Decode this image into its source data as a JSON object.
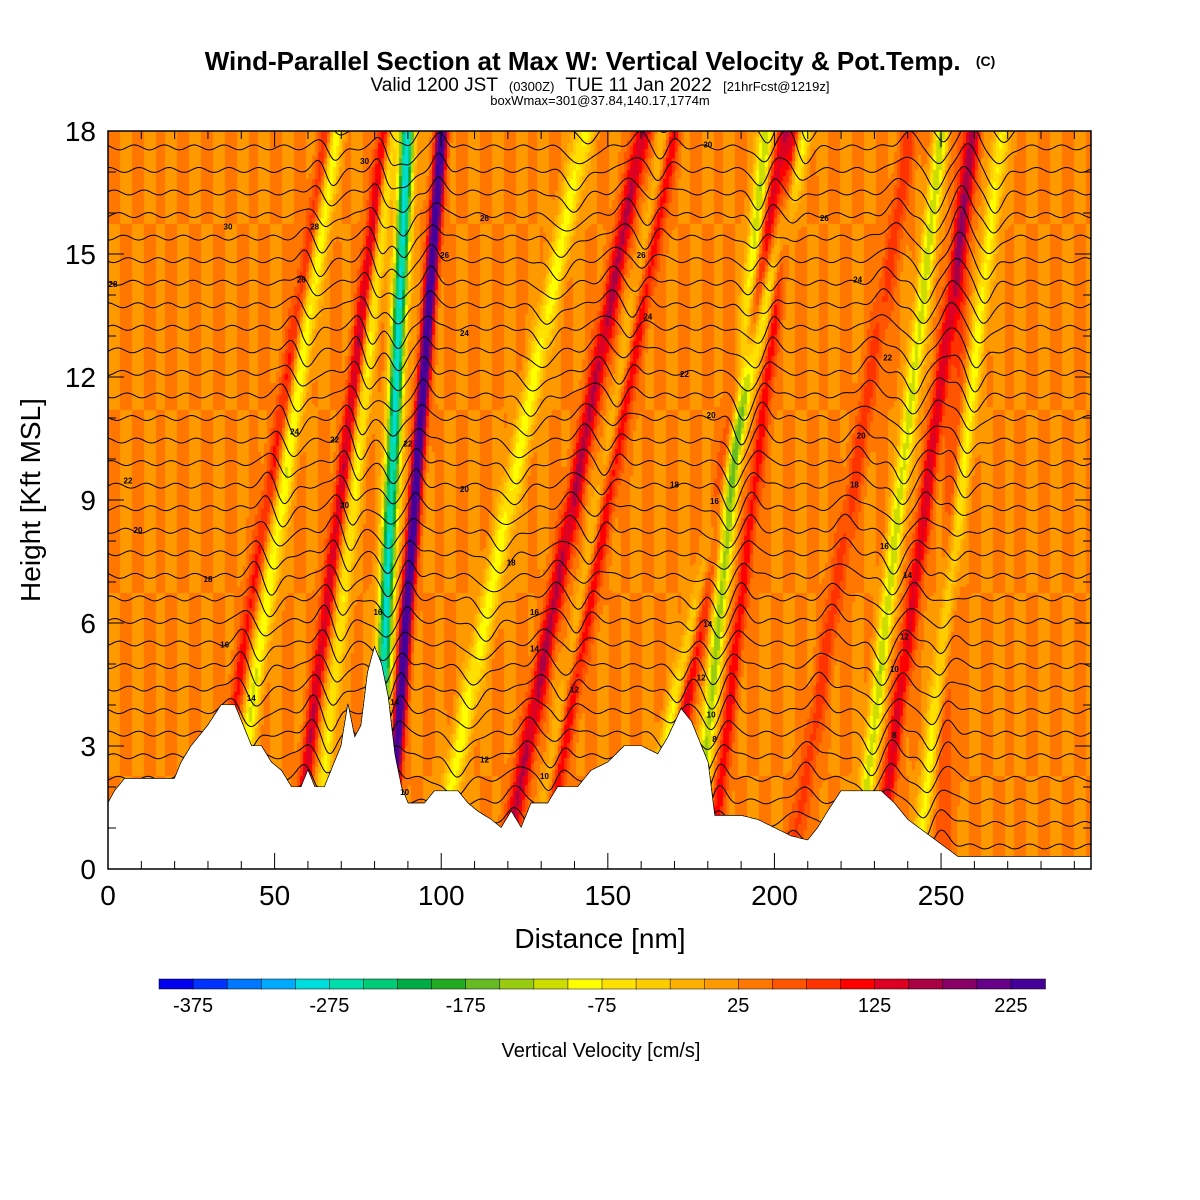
{
  "header": {
    "title": "Wind-Parallel Section at Max W: Vertical Velocity & Pot.Temp.",
    "title_mark": "(C)",
    "valid_prefix": "Valid 1200 JST",
    "valid_utc": "(0300Z)",
    "valid_date": "TUE 11 Jan 2022",
    "valid_fcst": "[21hrFcst@1219z]",
    "box_info": "boxWmax=301@37.84,140.17,1774m"
  },
  "chart_data": {
    "type": "heatmap",
    "title": "Wind-Parallel Section at Max W: Vertical Velocity & Pot.Temp.",
    "xlabel": "Distance [nm]",
    "ylabel": "Height [Kft MSL]",
    "xlim": [
      0,
      295
    ],
    "ylim": [
      0,
      18
    ],
    "x_ticks": [
      0,
      50,
      100,
      150,
      200,
      250
    ],
    "y_ticks": [
      0,
      3,
      6,
      9,
      12,
      15,
      18
    ],
    "grid": false,
    "colorbar": {
      "label": "Vertical Velocity [cm/s]",
      "min": -400,
      "max": 250,
      "step": 25,
      "tick_labels": [
        "-375",
        "-275",
        "-175",
        "-75",
        "25",
        "125",
        "225"
      ],
      "colors": [
        "#0000ee",
        "#0033ff",
        "#0077ff",
        "#00aaff",
        "#00dddd",
        "#00ddaa",
        "#00cc77",
        "#00aa44",
        "#22aa22",
        "#66bb22",
        "#99cc11",
        "#ccdd00",
        "#ffff00",
        "#ffe000",
        "#ffcc00",
        "#ffb000",
        "#ff9900",
        "#ff7700",
        "#ff5500",
        "#ff3300",
        "#ff0000",
        "#dd0022",
        "#aa0044",
        "#880066",
        "#660088",
        "#440099"
      ]
    },
    "terrain_kft": [
      [
        0,
        1.6
      ],
      [
        2,
        1.9
      ],
      [
        5,
        2.2
      ],
      [
        20,
        2.2
      ],
      [
        22,
        2.6
      ],
      [
        25,
        3.0
      ],
      [
        30,
        3.5
      ],
      [
        34,
        4.0
      ],
      [
        38,
        4.0
      ],
      [
        40,
        3.6
      ],
      [
        43,
        3.0
      ],
      [
        46,
        3.0
      ],
      [
        49,
        2.6
      ],
      [
        52,
        2.4
      ],
      [
        55,
        2.0
      ],
      [
        58,
        2.0
      ],
      [
        60,
        2.4
      ],
      [
        62,
        2.0
      ],
      [
        65,
        2.0
      ],
      [
        68,
        2.6
      ],
      [
        70,
        3.0
      ],
      [
        72,
        4.0
      ],
      [
        74,
        3.2
      ],
      [
        76,
        3.5
      ],
      [
        78,
        4.8
      ],
      [
        80,
        5.4
      ],
      [
        82,
        5.0
      ],
      [
        84,
        4.2
      ],
      [
        86,
        2.8
      ],
      [
        88,
        2.0
      ],
      [
        90,
        1.6
      ],
      [
        95,
        1.6
      ],
      [
        98,
        1.9
      ],
      [
        105,
        1.9
      ],
      [
        108,
        1.6
      ],
      [
        111,
        1.4
      ],
      [
        115,
        1.2
      ],
      [
        118,
        1.0
      ],
      [
        121,
        1.4
      ],
      [
        124,
        1.0
      ],
      [
        127,
        1.6
      ],
      [
        132,
        1.6
      ],
      [
        135,
        2.0
      ],
      [
        141,
        2.0
      ],
      [
        145,
        2.4
      ],
      [
        150,
        2.6
      ],
      [
        155,
        3.0
      ],
      [
        160,
        3.0
      ],
      [
        165,
        2.8
      ],
      [
        168,
        3.2
      ],
      [
        172,
        3.9
      ],
      [
        175,
        3.6
      ],
      [
        178,
        3.0
      ],
      [
        180,
        2.6
      ],
      [
        182,
        1.3
      ],
      [
        190,
        1.3
      ],
      [
        195,
        1.2
      ],
      [
        200,
        1.0
      ],
      [
        205,
        0.8
      ],
      [
        210,
        0.7
      ],
      [
        213,
        1.0
      ],
      [
        216,
        1.4
      ],
      [
        220,
        1.9
      ],
      [
        232,
        1.9
      ],
      [
        236,
        1.6
      ],
      [
        240,
        1.2
      ],
      [
        245,
        0.9
      ],
      [
        250,
        0.6
      ],
      [
        255,
        0.3
      ],
      [
        295,
        0.3
      ]
    ],
    "updrafts": [
      {
        "x0": 30,
        "slope": 2.0,
        "amp": 80,
        "w": 2.2
      },
      {
        "x0": 56,
        "slope": 1.5,
        "amp": 120,
        "w": 2.0
      },
      {
        "x0": 84,
        "slope": 0.9,
        "amp": 250,
        "w": 1.8
      },
      {
        "x0": 119,
        "slope": 2.3,
        "amp": 130,
        "w": 2.6
      },
      {
        "x0": 130,
        "slope": 2.2,
        "amp": 110,
        "w": 2.4
      },
      {
        "x0": 165,
        "slope": 2.1,
        "amp": 120,
        "w": 2.4
      },
      {
        "x0": 181,
        "slope": 1.4,
        "amp": 90,
        "w": 2.0
      },
      {
        "x0": 205,
        "slope": 2.0,
        "amp": 60,
        "w": 2.6
      },
      {
        "x0": 231,
        "slope": 1.6,
        "amp": 110,
        "w": 2.2
      },
      {
        "x0": 250,
        "slope": 0.4,
        "amp": 50,
        "w": 2.6
      }
    ],
    "downdrafts": [
      {
        "x0": 36,
        "slope": 1.8,
        "amp": -120,
        "w": 2.4
      },
      {
        "x0": 62,
        "slope": 1.3,
        "amp": -100,
        "w": 2.0
      },
      {
        "x0": 80,
        "slope": 0.55,
        "amp": -310,
        "w": 2.2
      },
      {
        "x0": 98,
        "slope": 2.5,
        "amp": -110,
        "w": 2.8
      },
      {
        "x0": 128,
        "slope": 2.2,
        "amp": -70,
        "w": 2.2
      },
      {
        "x0": 159,
        "slope": 2.8,
        "amp": -110,
        "w": 2.4
      },
      {
        "x0": 176,
        "slope": 1.2,
        "amp": -160,
        "w": 2.2
      },
      {
        "x0": 225,
        "slope": 1.4,
        "amp": -140,
        "w": 2.2
      },
      {
        "x0": 243,
        "slope": 1.4,
        "amp": -110,
        "w": 2.2
      }
    ],
    "theta_levels": {
      "start": 4,
      "end": 44,
      "step": 1
    },
    "contour_labels": [
      {
        "x": 1.5,
        "y": 14.2,
        "text": "28"
      },
      {
        "x": 6,
        "y": 9.4,
        "text": "22"
      },
      {
        "x": 9,
        "y": 8.2,
        "text": "20"
      },
      {
        "x": 30,
        "y": 7.0,
        "text": "18"
      },
      {
        "x": 35,
        "y": 5.4,
        "text": "16"
      },
      {
        "x": 43,
        "y": 4.1,
        "text": "14"
      },
      {
        "x": 36,
        "y": 15.6,
        "text": "30"
      },
      {
        "x": 62,
        "y": 15.6,
        "text": "28"
      },
      {
        "x": 58,
        "y": 14.3,
        "text": "26"
      },
      {
        "x": 56,
        "y": 10.6,
        "text": "24"
      },
      {
        "x": 68,
        "y": 10.4,
        "text": "22"
      },
      {
        "x": 71,
        "y": 8.8,
        "text": "20"
      },
      {
        "x": 77,
        "y": 17.2,
        "text": "30"
      },
      {
        "x": 81,
        "y": 6.2,
        "text": "16"
      },
      {
        "x": 86,
        "y": 4.0,
        "text": "14"
      },
      {
        "x": 90,
        "y": 10.3,
        "text": "22"
      },
      {
        "x": 89,
        "y": 1.8,
        "text": "10"
      },
      {
        "x": 101,
        "y": 14.9,
        "text": "26"
      },
      {
        "x": 107,
        "y": 13.0,
        "text": "24"
      },
      {
        "x": 107,
        "y": 9.2,
        "text": "20"
      },
      {
        "x": 113,
        "y": 2.6,
        "text": "12"
      },
      {
        "x": 113,
        "y": 15.8,
        "text": "26"
      },
      {
        "x": 121,
        "y": 7.4,
        "text": "18"
      },
      {
        "x": 128,
        "y": 6.2,
        "text": "16"
      },
      {
        "x": 128,
        "y": 5.3,
        "text": "14"
      },
      {
        "x": 131,
        "y": 2.2,
        "text": "10"
      },
      {
        "x": 140,
        "y": 4.3,
        "text": "12"
      },
      {
        "x": 160,
        "y": 14.9,
        "text": "26"
      },
      {
        "x": 162,
        "y": 13.4,
        "text": "24"
      },
      {
        "x": 173,
        "y": 12.0,
        "text": "22"
      },
      {
        "x": 180,
        "y": 17.6,
        "text": "30"
      },
      {
        "x": 181,
        "y": 11.0,
        "text": "20"
      },
      {
        "x": 170,
        "y": 9.3,
        "text": "18"
      },
      {
        "x": 182,
        "y": 8.9,
        "text": "16"
      },
      {
        "x": 180,
        "y": 5.9,
        "text": "14"
      },
      {
        "x": 178,
        "y": 4.6,
        "text": "12"
      },
      {
        "x": 181,
        "y": 3.7,
        "text": "10"
      },
      {
        "x": 182,
        "y": 3.1,
        "text": "8"
      },
      {
        "x": 215,
        "y": 15.8,
        "text": "26"
      },
      {
        "x": 225,
        "y": 14.3,
        "text": "24"
      },
      {
        "x": 234,
        "y": 12.4,
        "text": "22"
      },
      {
        "x": 226,
        "y": 10.5,
        "text": "20"
      },
      {
        "x": 224,
        "y": 9.3,
        "text": "18"
      },
      {
        "x": 233,
        "y": 7.8,
        "text": "16"
      },
      {
        "x": 240,
        "y": 7.1,
        "text": "14"
      },
      {
        "x": 239,
        "y": 5.6,
        "text": "12"
      },
      {
        "x": 236,
        "y": 4.8,
        "text": "10"
      },
      {
        "x": 236,
        "y": 3.2,
        "text": "8"
      }
    ]
  }
}
